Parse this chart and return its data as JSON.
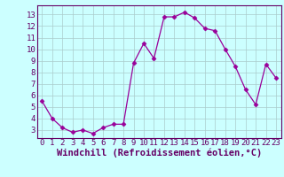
{
  "x": [
    0,
    1,
    2,
    3,
    4,
    5,
    6,
    7,
    8,
    9,
    10,
    11,
    12,
    13,
    14,
    15,
    16,
    17,
    18,
    19,
    20,
    21,
    22,
    23
  ],
  "y": [
    5.5,
    4.0,
    3.2,
    2.8,
    3.0,
    2.7,
    3.2,
    3.5,
    3.5,
    8.8,
    10.5,
    9.2,
    12.8,
    12.8,
    13.2,
    12.7,
    11.8,
    11.6,
    10.0,
    8.5,
    6.5,
    5.2,
    8.7,
    7.5
  ],
  "line_color": "#990099",
  "marker": "D",
  "marker_size": 2.5,
  "bg_color": "#ccffff",
  "grid_color": "#aacccc",
  "xlabel": "Windchill (Refroidissement éolien,°C)",
  "xlabel_color": "#660066",
  "tick_color": "#660066",
  "xlim": [
    -0.5,
    23.5
  ],
  "ylim": [
    2.3,
    13.8
  ],
  "yticks": [
    3,
    4,
    5,
    6,
    7,
    8,
    9,
    10,
    11,
    12,
    13
  ],
  "xticks": [
    0,
    1,
    2,
    3,
    4,
    5,
    6,
    7,
    8,
    9,
    10,
    11,
    12,
    13,
    14,
    15,
    16,
    17,
    18,
    19,
    20,
    21,
    22,
    23
  ],
  "tick_fontsize": 6.5,
  "xlabel_fontsize": 7.5,
  "spine_color": "#660066"
}
